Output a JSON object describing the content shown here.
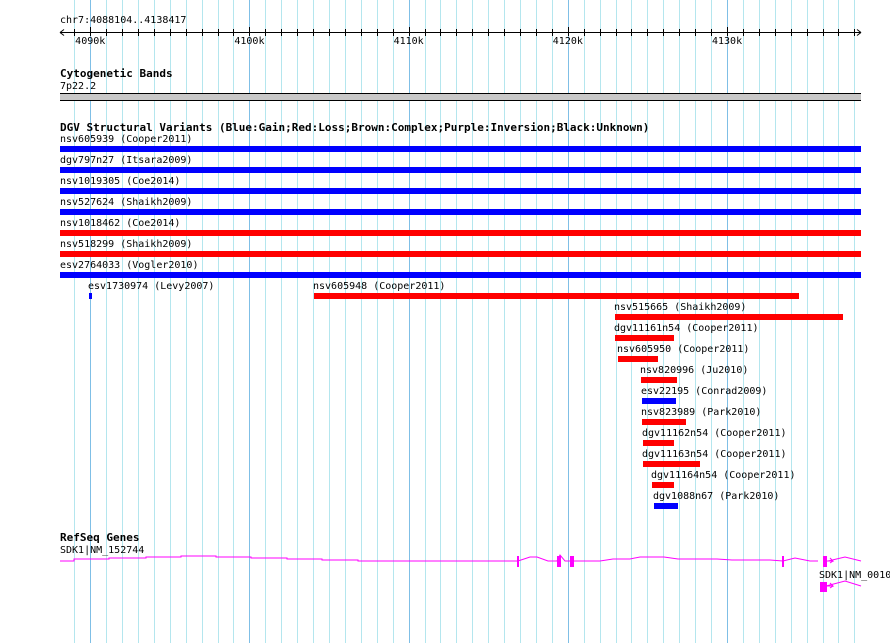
{
  "ruler": {
    "range_label": "chr7:4088104..4138417",
    "start": 4088104,
    "end": 4138417,
    "tick_labels": [
      {
        "label": "4090k",
        "pos": 4090000
      },
      {
        "label": "4100k",
        "pos": 4100000
      },
      {
        "label": "4110k",
        "pos": 4110000
      },
      {
        "label": "4120k",
        "pos": 4120000
      },
      {
        "label": "4130k",
        "pos": 4130000
      }
    ]
  },
  "cytoband": {
    "title": "Cytogenetic Bands",
    "band": "7p22.2"
  },
  "dgv": {
    "title": "DGV Structural Variants (Blue:Gain;Red:Loss;Brown:Complex;Purple:Inversion;Black:Unknown)",
    "colors": {
      "gain": "#0000ff",
      "loss": "#ff0000"
    },
    "variants": [
      {
        "label": "nsv605939 (Cooper2011)",
        "type": "gain",
        "start": 4088104,
        "end": 4138417,
        "row": 0
      },
      {
        "label": "dgv797n27 (Itsara2009)",
        "type": "gain",
        "start": 4088104,
        "end": 4138417,
        "row": 1
      },
      {
        "label": "nsv1019305 (Coe2014)",
        "type": "gain",
        "start": 4088104,
        "end": 4138417,
        "row": 2
      },
      {
        "label": "nsv527624 (Shaikh2009)",
        "type": "gain",
        "start": 4088104,
        "end": 4138417,
        "row": 3
      },
      {
        "label": "nsv1018462 (Coe2014)",
        "type": "loss",
        "start": 4088104,
        "end": 4138417,
        "row": 4
      },
      {
        "label": "nsv518299 (Shaikh2009)",
        "type": "loss",
        "start": 4088104,
        "end": 4138417,
        "row": 5
      },
      {
        "label": "esv2764033 (Vogler2010)",
        "type": "gain",
        "start": 4088104,
        "end": 4138417,
        "row": 6
      },
      {
        "label": "esv1730974 (Levy2007)",
        "type": "gain",
        "start": 4089926,
        "end": 4090114,
        "row": 7
      },
      {
        "label": "nsv605948 (Cooper2011)",
        "type": "loss",
        "start": 4104058,
        "end": 4134520,
        "row": 7
      },
      {
        "label": "nsv515665 (Shaikh2009)",
        "type": "loss",
        "start": 4122964,
        "end": 4137284,
        "row": 8
      },
      {
        "label": "dgv11161n54 (Cooper2011)",
        "type": "loss",
        "start": 4122964,
        "end": 4126669,
        "row": 9
      },
      {
        "label": "nsv605950 (Cooper2011)",
        "type": "loss",
        "start": 4123152,
        "end": 4125664,
        "row": 10
      },
      {
        "label": "nsv820996 (Ju2010)",
        "type": "loss",
        "start": 4124597,
        "end": 4126858,
        "row": 11
      },
      {
        "label": "esv22195 (Conrad2009)",
        "type": "gain",
        "start": 4124660,
        "end": 4126795,
        "row": 12
      },
      {
        "label": "nsv823989 (Park2010)",
        "type": "loss",
        "start": 4124660,
        "end": 4127423,
        "row": 13
      },
      {
        "label": "dgv11162n54 (Cooper2011)",
        "type": "loss",
        "start": 4124722,
        "end": 4126669,
        "row": 14
      },
      {
        "label": "dgv11163n54 (Cooper2011)",
        "type": "loss",
        "start": 4124722,
        "end": 4128302,
        "row": 15
      },
      {
        "label": "dgv11164n54 (Cooper2011)",
        "type": "loss",
        "start": 4125288,
        "end": 4126669,
        "row": 16
      },
      {
        "label": "dgv1088n67 (Park2010)",
        "type": "gain",
        "start": 4125413,
        "end": 4126921,
        "row": 17
      }
    ]
  },
  "refseq": {
    "title": "RefSeq Genes",
    "color": "#ff00ff",
    "genes": [
      {
        "label": "SDK1|NM_152744"
      },
      {
        "label": "SDK1|NM_0010"
      }
    ]
  }
}
